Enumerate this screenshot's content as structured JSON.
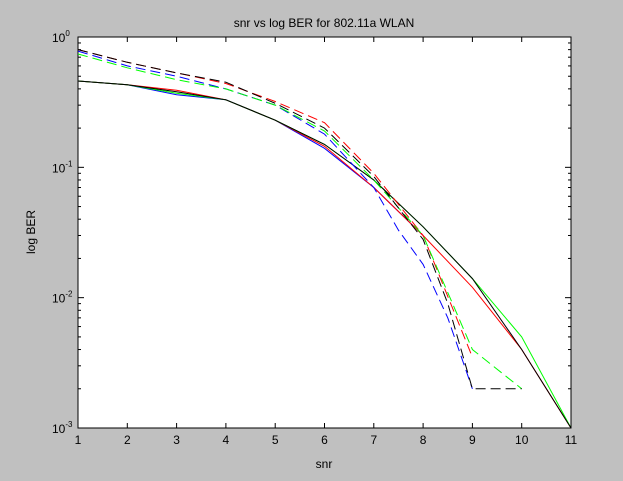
{
  "chart_data": {
    "type": "line",
    "title": "snr vs log BER for 802.11a WLAN",
    "xlabel": "snr",
    "ylabel": "log BER",
    "xlim": [
      1,
      11
    ],
    "ylim": [
      0.001,
      1
    ],
    "yscale": "log",
    "grid": false,
    "x_ticks": [
      "1",
      "2",
      "3",
      "4",
      "5",
      "6",
      "7",
      "8",
      "9",
      "10",
      "11"
    ],
    "y_ticks": [
      {
        "base": "10",
        "exp": "0",
        "value": 1
      },
      {
        "base": "10",
        "exp": "-1",
        "value": 0.1
      },
      {
        "base": "10",
        "exp": "-2",
        "value": 0.01
      },
      {
        "base": "10",
        "exp": "-3",
        "value": 0.001
      }
    ],
    "series": [
      {
        "color": "#0000ff",
        "dash": "solid",
        "x": [
          1,
          2,
          3,
          4,
          5,
          6,
          7,
          8
        ],
        "y": [
          0.46,
          0.43,
          0.36,
          0.33,
          0.23,
          0.14,
          0.07,
          0.03
        ]
      },
      {
        "color": "#ff0000",
        "dash": "solid",
        "x": [
          1,
          2,
          3,
          4,
          5,
          6,
          7,
          8,
          9,
          10,
          11
        ],
        "y": [
          0.46,
          0.43,
          0.39,
          0.33,
          0.23,
          0.145,
          0.07,
          0.03,
          0.012,
          0.004,
          0.001
        ]
      },
      {
        "color": "#00ff00",
        "dash": "solid",
        "x": [
          1,
          2,
          3,
          4,
          5,
          6,
          7,
          8,
          9,
          10,
          11
        ],
        "y": [
          0.46,
          0.43,
          0.37,
          0.33,
          0.23,
          0.15,
          0.08,
          0.035,
          0.014,
          0.005,
          0.001
        ]
      },
      {
        "color": "#000000",
        "dash": "solid",
        "x": [
          1,
          2,
          3,
          4,
          5,
          6,
          7,
          8,
          9,
          10,
          11
        ],
        "y": [
          0.46,
          0.43,
          0.38,
          0.33,
          0.23,
          0.15,
          0.08,
          0.035,
          0.014,
          0.004,
          0.001
        ]
      },
      {
        "color": "#0000ff",
        "dash": "dashed",
        "x": [
          1,
          2,
          3,
          4,
          5,
          6,
          7,
          7.5,
          8,
          8.5,
          9
        ],
        "y": [
          0.78,
          0.6,
          0.5,
          0.4,
          0.3,
          0.18,
          0.07,
          0.033,
          0.018,
          0.007,
          0.002
        ]
      },
      {
        "color": "#ff0000",
        "dash": "dashed",
        "x": [
          1,
          2,
          3,
          4,
          5,
          6,
          7,
          8,
          9
        ],
        "y": [
          0.8,
          0.64,
          0.53,
          0.44,
          0.32,
          0.22,
          0.09,
          0.03,
          0.0035
        ]
      },
      {
        "color": "#00ff00",
        "dash": "dashed",
        "x": [
          1,
          2,
          3,
          4,
          5,
          6,
          7,
          8,
          9,
          10
        ],
        "y": [
          0.74,
          0.58,
          0.47,
          0.4,
          0.3,
          0.19,
          0.08,
          0.03,
          0.004,
          0.002
        ]
      },
      {
        "color": "#000000",
        "dash": "dashed",
        "x": [
          1,
          2,
          3,
          4,
          5,
          6,
          7,
          8,
          8.5,
          9,
          10
        ],
        "y": [
          0.8,
          0.64,
          0.53,
          0.45,
          0.31,
          0.2,
          0.085,
          0.028,
          0.009,
          0.002,
          0.002
        ]
      }
    ]
  }
}
